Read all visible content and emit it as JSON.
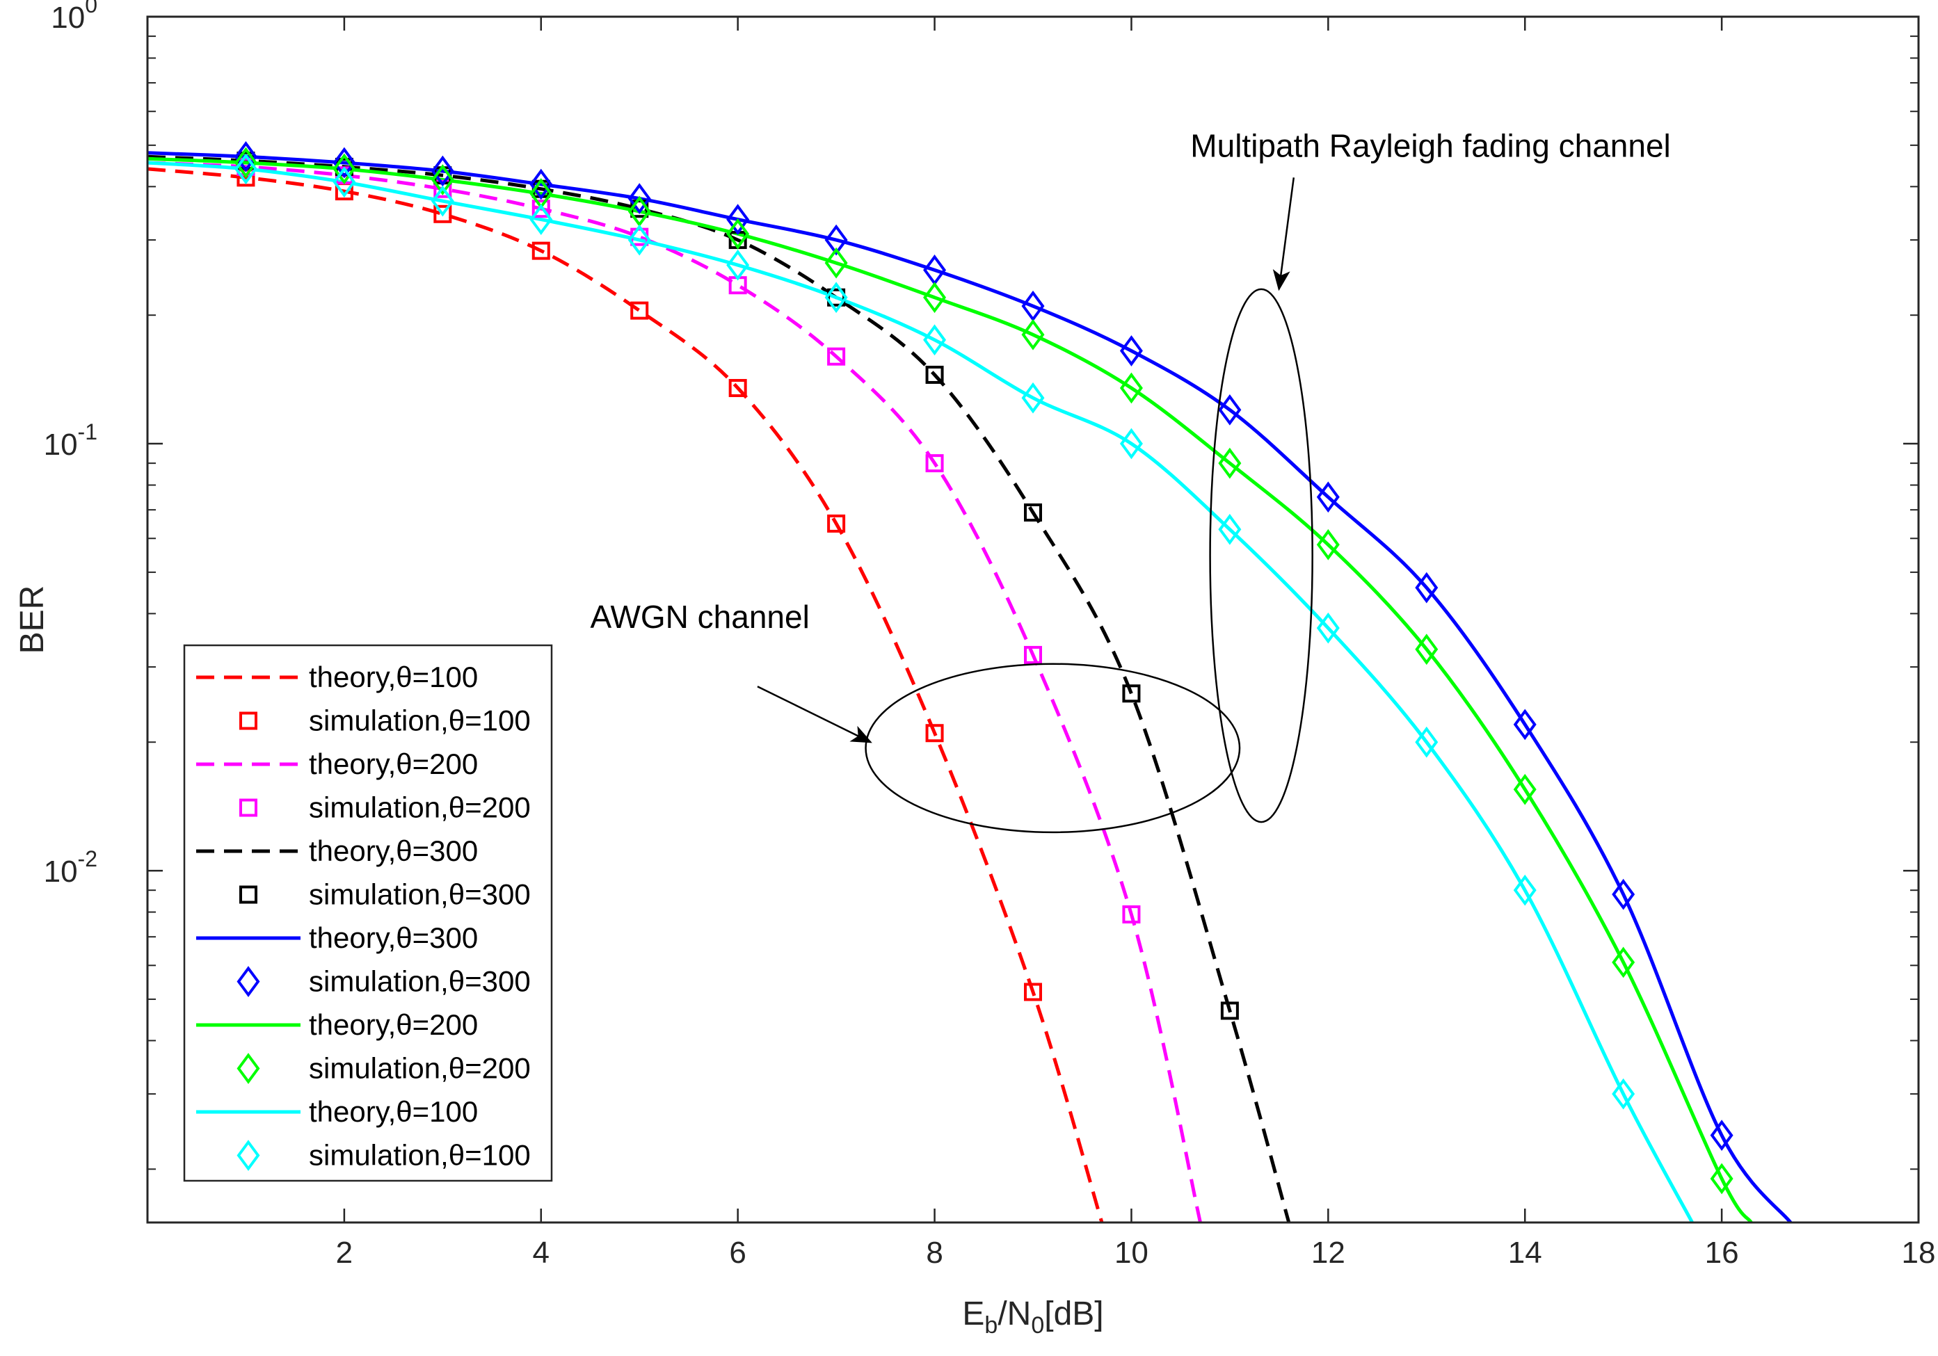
{
  "chart_data": {
    "type": "line",
    "title": "",
    "xlabel": {
      "main": "E",
      "sub1": "b",
      "mid": "/N",
      "sub2": "0",
      "tail": "[dB]"
    },
    "ylabel": "BER",
    "xlim": [
      0,
      18
    ],
    "ylim": [
      0.0015,
      1
    ],
    "yscale": "log",
    "x_ticks": [
      2,
      4,
      6,
      8,
      10,
      12,
      14,
      16,
      18
    ],
    "y_ticks": [
      {
        "value": 1,
        "base": "10",
        "exp": "0"
      },
      {
        "value": 0.1,
        "base": "10",
        "exp": "-1"
      },
      {
        "value": 0.01,
        "base": "10",
        "exp": "-2"
      }
    ],
    "grid": false,
    "legend_position": "bottom-left",
    "series": [
      {
        "name": "theory,θ=100",
        "kind": "theory",
        "style": "dashed",
        "color": "#ff0000",
        "x": [
          0,
          1,
          2,
          3,
          4,
          5,
          6,
          7,
          8,
          9,
          9.7
        ],
        "y": [
          0.44,
          0.42,
          0.39,
          0.345,
          0.283,
          0.205,
          0.135,
          0.065,
          0.021,
          0.0052,
          0.0015
        ]
      },
      {
        "name": "simulation,θ=100",
        "kind": "sim",
        "marker": "square",
        "color": "#ff0000",
        "x": [
          1,
          2,
          3,
          4,
          5,
          6,
          7,
          8,
          9
        ],
        "y": [
          0.42,
          0.39,
          0.345,
          0.283,
          0.205,
          0.135,
          0.065,
          0.021,
          0.0052
        ]
      },
      {
        "name": "theory,θ=200",
        "kind": "theory",
        "style": "dashed",
        "color": "#ff00ff",
        "x": [
          0,
          1,
          2,
          3,
          4,
          5,
          6,
          7,
          8,
          9,
          10,
          10.7
        ],
        "y": [
          0.455,
          0.445,
          0.425,
          0.395,
          0.355,
          0.305,
          0.235,
          0.16,
          0.09,
          0.032,
          0.0079,
          0.0015
        ]
      },
      {
        "name": "simulation,θ=200",
        "kind": "sim",
        "marker": "square",
        "color": "#ff00ff",
        "x": [
          1,
          2,
          3,
          4,
          5,
          6,
          7,
          8,
          9,
          10
        ],
        "y": [
          0.445,
          0.425,
          0.395,
          0.355,
          0.305,
          0.235,
          0.16,
          0.09,
          0.032,
          0.0079
        ]
      },
      {
        "name": "theory,θ=300",
        "kind": "theory",
        "style": "dashed",
        "color": "#000000",
        "x": [
          0,
          1,
          2,
          3,
          4,
          5,
          6,
          7,
          8,
          9,
          10,
          11,
          11.6
        ],
        "y": [
          0.47,
          0.46,
          0.445,
          0.425,
          0.395,
          0.355,
          0.3,
          0.22,
          0.145,
          0.069,
          0.026,
          0.0047,
          0.0015
        ]
      },
      {
        "name": "simulation,θ=300",
        "kind": "sim",
        "marker": "square",
        "color": "#000000",
        "x": [
          1,
          2,
          3,
          4,
          5,
          6,
          7,
          8,
          9,
          10,
          11
        ],
        "y": [
          0.46,
          0.445,
          0.425,
          0.395,
          0.355,
          0.3,
          0.22,
          0.145,
          0.069,
          0.026,
          0.0047
        ]
      },
      {
        "name": "theory,θ=300",
        "kind": "theory",
        "style": "solid",
        "color": "#0000ff",
        "x": [
          0,
          1,
          2,
          3,
          4,
          5,
          6,
          7,
          8,
          9,
          10,
          11,
          12,
          13,
          14,
          15,
          16,
          16.7
        ],
        "y": [
          0.48,
          0.47,
          0.455,
          0.435,
          0.405,
          0.375,
          0.335,
          0.3,
          0.255,
          0.21,
          0.165,
          0.12,
          0.075,
          0.046,
          0.022,
          0.0088,
          0.0024,
          0.0015
        ]
      },
      {
        "name": "simulation,θ=300",
        "kind": "sim",
        "marker": "diamond",
        "color": "#0000ff",
        "x": [
          1,
          2,
          3,
          4,
          5,
          6,
          7,
          8,
          9,
          10,
          11,
          12,
          13,
          14,
          15,
          16
        ],
        "y": [
          0.47,
          0.455,
          0.435,
          0.405,
          0.375,
          0.335,
          0.3,
          0.255,
          0.21,
          0.165,
          0.12,
          0.075,
          0.046,
          0.022,
          0.0088,
          0.0024
        ]
      },
      {
        "name": "theory,θ=200",
        "kind": "theory",
        "style": "solid",
        "color": "#00ff00",
        "x": [
          0,
          1,
          2,
          3,
          4,
          5,
          6,
          7,
          8,
          9,
          10,
          11,
          12,
          13,
          14,
          15,
          16,
          16.3
        ],
        "y": [
          0.465,
          0.455,
          0.44,
          0.415,
          0.385,
          0.35,
          0.31,
          0.265,
          0.22,
          0.18,
          0.135,
          0.09,
          0.058,
          0.033,
          0.0155,
          0.0061,
          0.0019,
          0.0015
        ]
      },
      {
        "name": "simulation,θ=200",
        "kind": "sim",
        "marker": "diamond",
        "color": "#00ff00",
        "x": [
          1,
          2,
          3,
          4,
          5,
          6,
          7,
          8,
          9,
          10,
          11,
          12,
          13,
          14,
          15,
          16
        ],
        "y": [
          0.455,
          0.44,
          0.415,
          0.385,
          0.35,
          0.31,
          0.265,
          0.22,
          0.18,
          0.135,
          0.09,
          0.058,
          0.033,
          0.0155,
          0.0061,
          0.0019
        ]
      },
      {
        "name": "theory,θ=100",
        "kind": "theory",
        "style": "solid",
        "color": "#00ffff",
        "x": [
          0,
          1,
          2,
          3,
          4,
          5,
          6,
          7,
          8,
          9,
          10,
          11,
          12,
          13,
          14,
          15,
          15.7
        ],
        "y": [
          0.455,
          0.44,
          0.41,
          0.37,
          0.335,
          0.3,
          0.262,
          0.22,
          0.175,
          0.128,
          0.1,
          0.063,
          0.037,
          0.02,
          0.009,
          0.003,
          0.0015
        ]
      },
      {
        "name": "simulation,θ=100",
        "kind": "sim",
        "marker": "diamond",
        "color": "#00ffff",
        "x": [
          1,
          2,
          3,
          4,
          5,
          6,
          7,
          8,
          9,
          10,
          11,
          12,
          13,
          14,
          15
        ],
        "y": [
          0.44,
          0.41,
          0.37,
          0.335,
          0.3,
          0.262,
          0.22,
          0.175,
          0.128,
          0.1,
          0.063,
          0.037,
          0.02,
          0.009,
          0.003
        ]
      }
    ],
    "annotations": [
      {
        "id": "rayleigh",
        "text": "Multipath  Rayleigh fading channel",
        "text_at": [
          10.6,
          0.47
        ],
        "arrow_from": [
          11.65,
          0.42
        ],
        "arrow_to": [
          11.5,
          0.23
        ],
        "ellipse_center": [
          11.32,
          0.042
        ],
        "ellipse_half_width": 0.52,
        "ellipse_y_span": [
          0.013,
          0.23
        ]
      },
      {
        "id": "awgn",
        "text": "AWGN channel",
        "text_at": [
          4.5,
          0.037
        ],
        "arrow_from": [
          6.2,
          0.027
        ],
        "arrow_to": [
          7.35,
          0.02
        ],
        "ellipse_center": [
          9.2,
          0.0195
        ],
        "ellipse_half_width": 1.9,
        "ellipse_y_span": [
          0.0123,
          0.0305
        ]
      }
    ]
  }
}
